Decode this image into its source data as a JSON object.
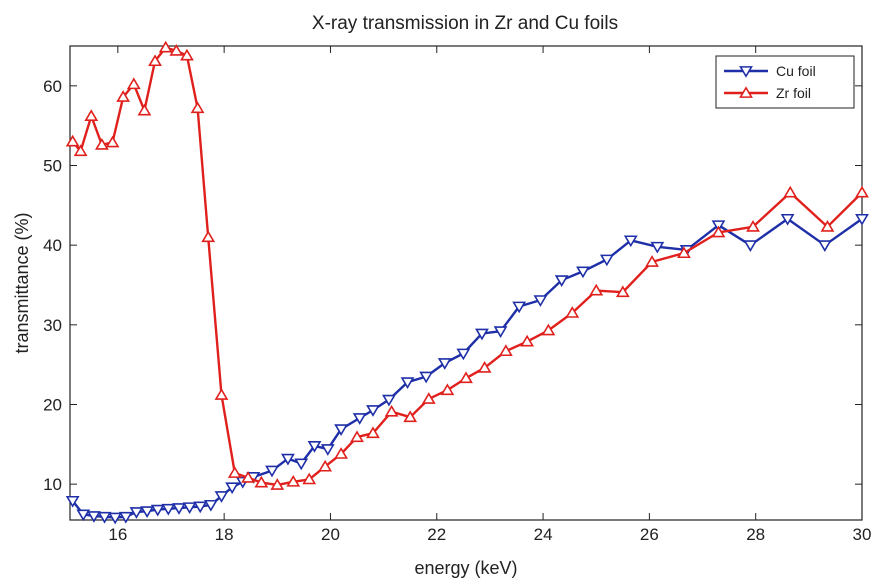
{
  "chart_data": {
    "type": "line",
    "title": "X-ray transmission in Zr and Cu foils",
    "xlabel": "energy (keV)",
    "ylabel": "transmittance (%)",
    "xlim": [
      15.1,
      30
    ],
    "ylim": [
      5.5,
      65
    ],
    "xticks": [
      16,
      18,
      20,
      22,
      24,
      26,
      28,
      30
    ],
    "yticks": [
      10,
      20,
      30,
      40,
      50,
      60
    ],
    "grid": false,
    "legend_position": "top-right",
    "series": [
      {
        "name": "Cu foil",
        "color": "#1f2fa8",
        "marker": "triangle-down",
        "x": [
          15.15,
          15.35,
          15.55,
          15.75,
          15.95,
          16.15,
          16.35,
          16.55,
          16.75,
          16.95,
          17.15,
          17.35,
          17.55,
          17.75,
          17.95,
          18.15,
          18.35,
          18.55,
          18.9,
          19.2,
          19.45,
          19.7,
          19.95,
          20.2,
          20.55,
          20.8,
          21.1,
          21.45,
          21.8,
          22.15,
          22.5,
          22.85,
          23.2,
          23.55,
          23.95,
          24.35,
          24.75,
          25.2,
          25.65,
          26.15,
          26.7,
          27.3,
          27.9,
          28.6,
          29.3,
          30.0
        ],
        "values": [
          7.9,
          6.2,
          6.0,
          5.9,
          5.8,
          5.9,
          6.5,
          6.6,
          6.8,
          6.9,
          7.0,
          7.1,
          7.2,
          7.4,
          8.5,
          9.6,
          10.3,
          10.9,
          11.7,
          13.2,
          12.6,
          14.8,
          14.4,
          16.9,
          18.3,
          19.3,
          20.6,
          22.8,
          23.5,
          25.2,
          26.4,
          28.9,
          29.2,
          32.3,
          33.1,
          35.6,
          36.7,
          38.2,
          40.6,
          39.8,
          39.4,
          42.5,
          40.0,
          43.3,
          40.0,
          43.3
        ]
      },
      {
        "name": "Zr foil",
        "color": "#e0201c",
        "marker": "triangle-up",
        "x": [
          15.15,
          15.3,
          15.5,
          15.7,
          15.9,
          16.1,
          16.3,
          16.5,
          16.7,
          16.9,
          17.1,
          17.3,
          17.5,
          17.7,
          17.95,
          18.2,
          18.45,
          18.7,
          19.0,
          19.3,
          19.6,
          19.9,
          20.2,
          20.5,
          20.8,
          21.15,
          21.5,
          21.85,
          22.2,
          22.55,
          22.9,
          23.3,
          23.7,
          24.1,
          24.55,
          25.0,
          25.5,
          26.05,
          26.65,
          27.3,
          27.95,
          28.65,
          29.35,
          30.0
        ],
        "values": [
          53.0,
          51.8,
          56.2,
          52.6,
          52.9,
          58.6,
          60.2,
          56.9,
          63.1,
          64.8,
          64.4,
          63.8,
          57.2,
          41.0,
          21.2,
          11.4,
          10.8,
          10.2,
          9.9,
          10.3,
          10.6,
          12.2,
          13.8,
          15.9,
          16.4,
          19.1,
          18.4,
          20.7,
          21.8,
          23.3,
          24.6,
          26.7,
          27.9,
          29.3,
          31.5,
          34.3,
          34.1,
          37.9,
          39.0,
          41.6,
          42.3,
          46.6,
          42.3,
          46.6
        ]
      }
    ]
  }
}
